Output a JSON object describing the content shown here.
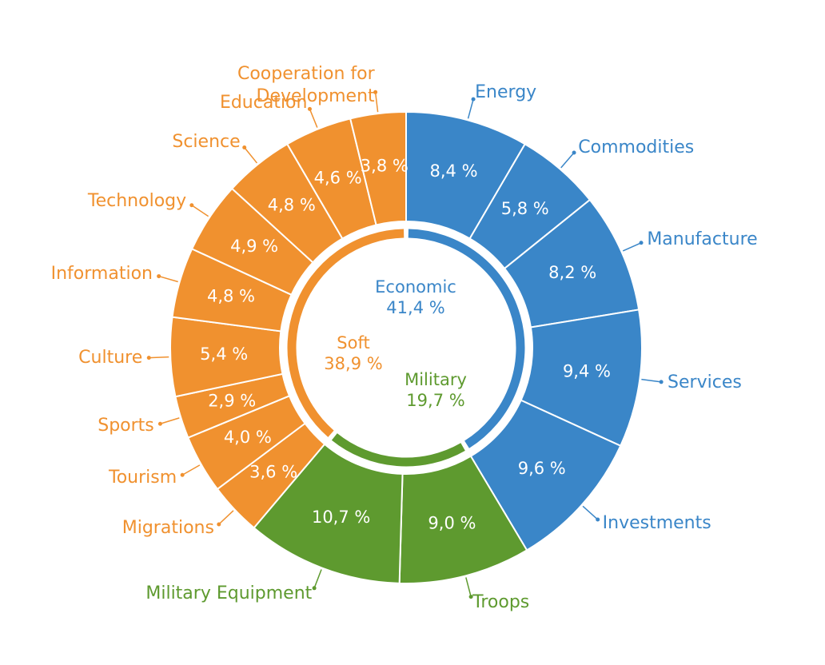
{
  "chart_data": {
    "type": "donut",
    "categories": [
      "Energy",
      "Commodities",
      "Manufacture",
      "Services",
      "Investments",
      "Troops",
      "Military Equipment",
      "Migrations",
      "Tourism",
      "Sports",
      "Culture",
      "Information",
      "Technology",
      "Science",
      "Education",
      "Cooperation for Development"
    ],
    "values": [
      8.4,
      5.8,
      8.2,
      9.4,
      9.6,
      9.0,
      10.7,
      3.6,
      4.0,
      2.9,
      5.4,
      4.8,
      4.9,
      4.8,
      4.6,
      3.8
    ],
    "value_labels": [
      "8,4 %",
      "5,8 %",
      "8,2 %",
      "9,4 %",
      "9,6 %",
      "9,0 %",
      "10,7 %",
      "3,6 %",
      "4,0 %",
      "2,9 %",
      "5,4 %",
      "4,8 %",
      "4,9 %",
      "4,8 %",
      "4,6 %",
      "3,8 %"
    ],
    "colors": [
      "#3a86c8",
      "#3a86c8",
      "#3a86c8",
      "#3a86c8",
      "#3a86c8",
      "#5e9a2f",
      "#5e9a2f",
      "#f0912f",
      "#f0912f",
      "#f0912f",
      "#f0912f",
      "#f0912f",
      "#f0912f",
      "#f0912f",
      "#f0912f",
      "#f0912f"
    ],
    "groups": {
      "names": [
        "Economic",
        "Military",
        "Soft"
      ],
      "values": [
        41.4,
        19.7,
        38.9
      ],
      "value_labels": [
        "41,4 %",
        "19,7 %",
        "38,9 %"
      ],
      "colors": [
        "#3a86c8",
        "#5e9a2f",
        "#f0912f"
      ]
    }
  }
}
